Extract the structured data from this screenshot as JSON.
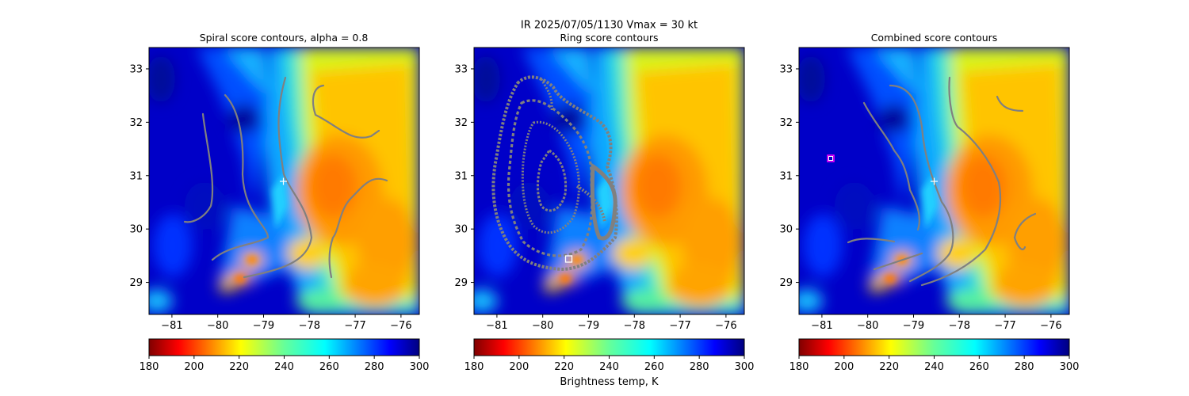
{
  "figure": {
    "suptitle_line1": "IR  2025/07/05/1130    Vmax = 30 kt"
  },
  "colors": {
    "contour": "#808080",
    "center_marker": "#ffffff",
    "ring_marker": "#ffffff",
    "combined_marker": "#ff00ff"
  },
  "chart_data": [
    {
      "type": "heatmap",
      "title": "Spiral score contours, alpha =  0.8",
      "xlim": [
        -81.5,
        -75.6
      ],
      "ylim": [
        28.4,
        33.4
      ],
      "xticks": [
        -81,
        -80,
        -79,
        -78,
        -77,
        -76
      ],
      "yticks": [
        29,
        30,
        31,
        32,
        33
      ],
      "xtick_labels": [
        "−81",
        "−80",
        "−79",
        "−78",
        "−77",
        "−76"
      ],
      "ytick_labels": [
        "29",
        "30",
        "31",
        "32",
        "33"
      ],
      "center_marker": {
        "symbol": "+",
        "x": -78.55,
        "y": 30.92
      },
      "colorbar": {
        "range": [
          180,
          300
        ],
        "ticks": [
          "180",
          "200",
          "220",
          "240",
          "260",
          "280",
          "300"
        ],
        "label": ""
      }
    },
    {
      "type": "heatmap",
      "title": "Ring score contours",
      "xlim": [
        -81.5,
        -75.6
      ],
      "ylim": [
        28.4,
        33.4
      ],
      "xticks": [
        -81,
        -80,
        -79,
        -78,
        -77,
        -76
      ],
      "yticks": [
        29,
        30,
        31,
        32,
        33
      ],
      "xtick_labels": [
        "−81",
        "−80",
        "−79",
        "−78",
        "−77",
        "−76"
      ],
      "ytick_labels": [
        "29",
        "30",
        "31",
        "32",
        "33"
      ],
      "center_marker": {
        "symbol": "square",
        "x": -79.4,
        "y": 29.45
      },
      "colorbar": {
        "range": [
          180,
          300
        ],
        "ticks": [
          "180",
          "200",
          "220",
          "240",
          "260",
          "280",
          "300"
        ],
        "label": "Brightness temp, K"
      }
    },
    {
      "type": "heatmap",
      "title": "Combined score contours",
      "xlim": [
        -81.5,
        -75.6
      ],
      "ylim": [
        28.4,
        33.4
      ],
      "xticks": [
        -81,
        -80,
        -79,
        -78,
        -77,
        -76
      ],
      "yticks": [
        29,
        30,
        31,
        32,
        33
      ],
      "xtick_labels": [
        "−81",
        "−80",
        "−79",
        "−78",
        "−77",
        "−76"
      ],
      "ytick_labels": [
        "29",
        "30",
        "31",
        "32",
        "33"
      ],
      "center_marker": {
        "symbol": "+",
        "x": -78.55,
        "y": 30.92
      },
      "extra_marker": {
        "symbol": "square",
        "x": -80.8,
        "y": 31.35
      },
      "colorbar": {
        "range": [
          180,
          300
        ],
        "ticks": [
          "180",
          "200",
          "220",
          "240",
          "260",
          "280",
          "300"
        ],
        "label": ""
      }
    }
  ]
}
